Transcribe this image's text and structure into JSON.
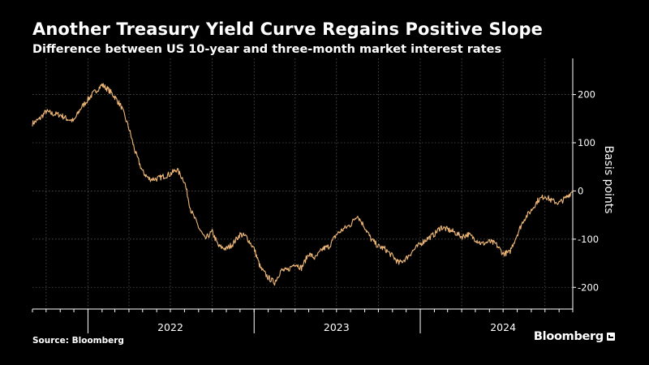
{
  "source": "Source: Bloomberg",
  "brand": "Bloomberg",
  "colors": {
    "background": "#000000",
    "line": "#f0b878",
    "grid": "#555555",
    "text": "#ffffff"
  },
  "chart_data": {
    "type": "line",
    "title": "Another Treasury Yield Curve Regains Positive Slope",
    "subtitle": "Difference between US 10-year and three-month market interest rates",
    "ylabel": "Basis points",
    "xlabel": "",
    "ylim": [
      -245,
      275
    ],
    "xlim": [
      "2021-09-01",
      "2024-12-01"
    ],
    "yticks": [
      200,
      100,
      0,
      -100,
      -200
    ],
    "ytick_labels": [
      "200",
      "100",
      "0",
      "-100",
      "-200"
    ],
    "year_labels": [
      {
        "label": "2022",
        "date": "2022-07-01"
      },
      {
        "label": "2023",
        "date": "2023-07-01"
      },
      {
        "label": "2024",
        "date": "2024-07-01"
      }
    ],
    "year_boundaries": [
      "2022-01-01",
      "2023-01-01",
      "2024-01-01"
    ],
    "grid": true,
    "series": [
      {
        "x": [
          "2021-09-01",
          "2021-09-15",
          "2021-10-01",
          "2021-10-15",
          "2021-11-01",
          "2021-11-15",
          "2021-12-01",
          "2021-12-15",
          "2022-01-01",
          "2022-01-15",
          "2022-02-01",
          "2022-02-15",
          "2022-03-01",
          "2022-03-15",
          "2022-04-01",
          "2022-04-15",
          "2022-05-01",
          "2022-05-15",
          "2022-06-01",
          "2022-06-15",
          "2022-07-01",
          "2022-07-15",
          "2022-08-01",
          "2022-08-15",
          "2022-09-01",
          "2022-09-15",
          "2022-10-01",
          "2022-10-15",
          "2022-11-01",
          "2022-11-15",
          "2022-12-01",
          "2022-12-15",
          "2023-01-01",
          "2023-01-15",
          "2023-02-01",
          "2023-02-15",
          "2023-03-01",
          "2023-03-15",
          "2023-04-01",
          "2023-04-15",
          "2023-05-01",
          "2023-05-15",
          "2023-06-01",
          "2023-06-15",
          "2023-07-01",
          "2023-07-15",
          "2023-08-01",
          "2023-08-15",
          "2023-09-01",
          "2023-09-15",
          "2023-10-01",
          "2023-10-15",
          "2023-11-01",
          "2023-11-15",
          "2023-12-01",
          "2023-12-15",
          "2024-01-01",
          "2024-01-15",
          "2024-02-01",
          "2024-02-15",
          "2024-03-01",
          "2024-03-15",
          "2024-04-01",
          "2024-04-15",
          "2024-05-01",
          "2024-05-15",
          "2024-06-01",
          "2024-06-15",
          "2024-07-01",
          "2024-07-15",
          "2024-08-01",
          "2024-08-15",
          "2024-09-01",
          "2024-09-15",
          "2024-10-01",
          "2024-10-15",
          "2024-11-01",
          "2024-11-15",
          "2024-12-01"
        ],
        "values": [
          140,
          148,
          165,
          160,
          158,
          150,
          145,
          170,
          190,
          205,
          220,
          210,
          195,
          175,
          130,
          80,
          40,
          25,
          25,
          30,
          35,
          45,
          20,
          -40,
          -75,
          -100,
          -85,
          -115,
          -120,
          -110,
          -90,
          -95,
          -120,
          -160,
          -180,
          -190,
          -165,
          -165,
          -150,
          -160,
          -130,
          -140,
          -120,
          -115,
          -90,
          -80,
          -70,
          -50,
          -75,
          -100,
          -115,
          -120,
          -135,
          -150,
          -140,
          -125,
          -110,
          -100,
          -90,
          -75,
          -80,
          -85,
          -95,
          -90,
          -100,
          -110,
          -105,
          -110,
          -130,
          -128,
          -90,
          -60,
          -40,
          -20,
          -10,
          -20,
          -25,
          -15,
          0
        ]
      }
    ]
  }
}
